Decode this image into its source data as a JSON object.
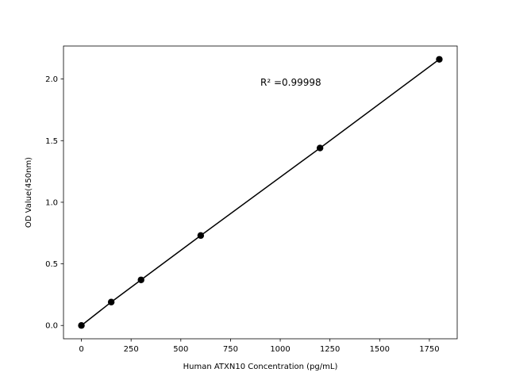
{
  "chart_data": {
    "type": "line",
    "xlabel": "Human ATXN10 Concentration (pg/mL)",
    "ylabel": "OD Value(450nm)",
    "annotation": "R² =0.99998",
    "x": [
      0,
      150,
      300,
      600,
      1200,
      1800
    ],
    "series": [
      {
        "color": "#000000",
        "values": [
          0.0,
          0.19,
          0.37,
          0.73,
          1.44,
          2.16
        ]
      }
    ],
    "xlim": [
      -90,
      1890
    ],
    "ylim": [
      -0.108,
      2.268
    ],
    "xticks": [
      0,
      250,
      500,
      750,
      1000,
      1250,
      1500,
      1750
    ],
    "yticks": [
      {
        "value": 0,
        "label": "0.0"
      },
      0.5,
      {
        "value": 1,
        "label": "1.0"
      },
      1.5,
      {
        "value": 2,
        "label": "2.0"
      }
    ]
  }
}
